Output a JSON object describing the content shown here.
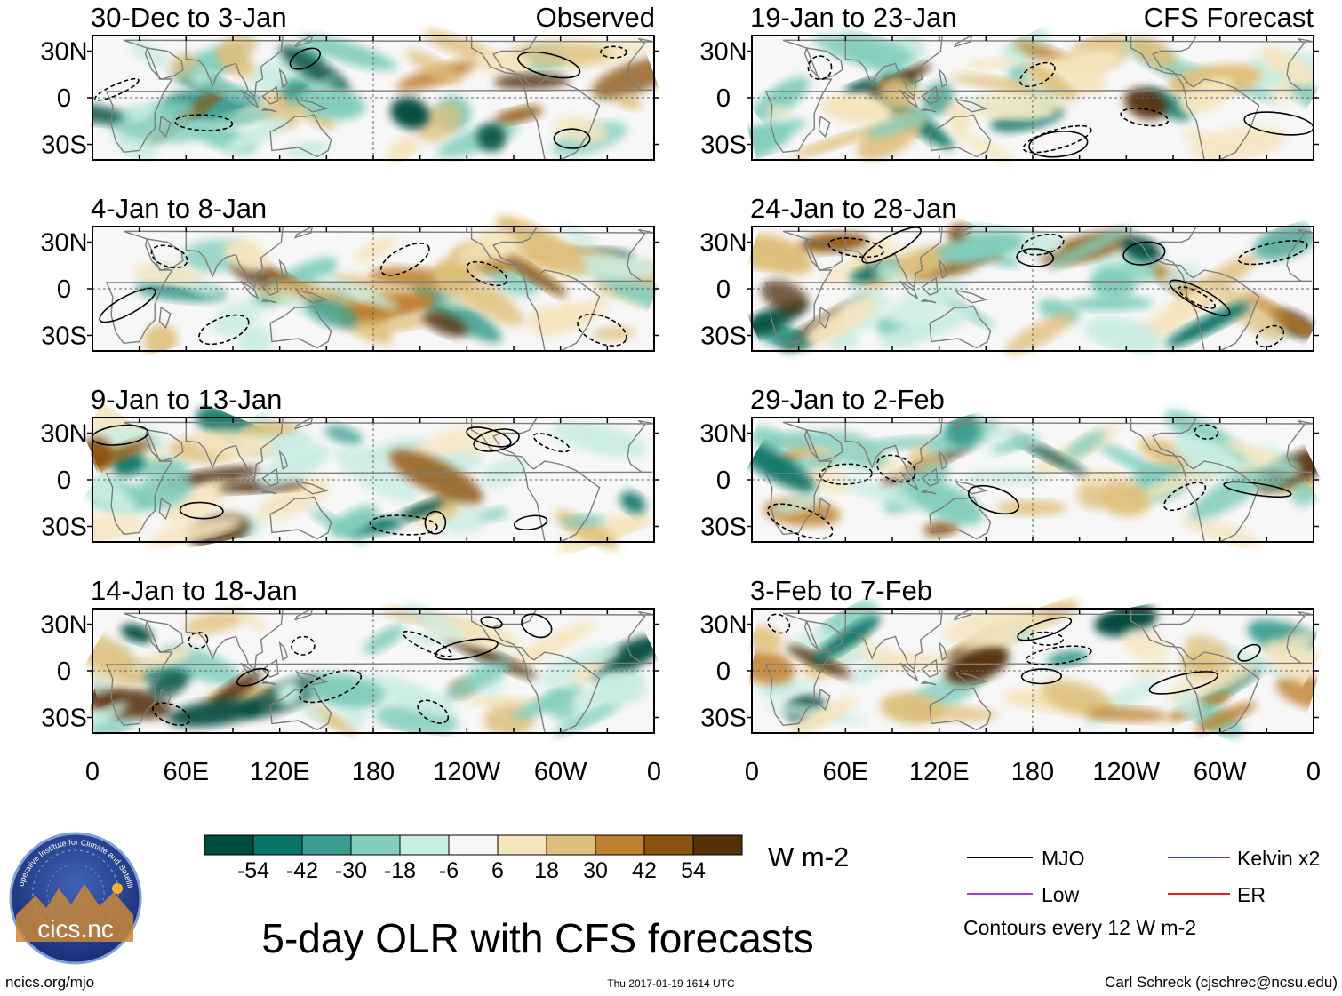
{
  "chart_data": {
    "type": "heatmap",
    "title": "5-day OLR with CFS forecasts",
    "units": "W m-2",
    "column_labels": {
      "left": "Observed",
      "right": "CFS Forecast"
    },
    "panels": [
      {
        "title": "30-Dec to 3-Jan",
        "kind": "observed"
      },
      {
        "title": "4-Jan to 8-Jan",
        "kind": "observed"
      },
      {
        "title": "9-Jan to 13-Jan",
        "kind": "observed"
      },
      {
        "title": "14-Jan to 18-Jan",
        "kind": "observed"
      },
      {
        "title": "19-Jan to 23-Jan",
        "kind": "forecast"
      },
      {
        "title": "24-Jan to 28-Jan",
        "kind": "forecast"
      },
      {
        "title": "29-Jan to 2-Feb",
        "kind": "forecast"
      },
      {
        "title": "3-Feb to 7-Feb",
        "kind": "forecast"
      }
    ],
    "x_ticks": [
      "0",
      "60E",
      "120E",
      "180",
      "120W",
      "60W",
      "0"
    ],
    "x_range_deg": [
      0,
      360
    ],
    "y_ticks": [
      "30N",
      "0",
      "30S"
    ],
    "y_range_deg": [
      -40,
      40
    ],
    "colorbar": {
      "ticks": [
        "-54",
        "-42",
        "-30",
        "-18",
        "-6",
        "6",
        "18",
        "30",
        "42",
        "54"
      ],
      "colors": [
        "#004a3e",
        "#087566",
        "#3a9c8e",
        "#82cdbd",
        "#c9ece2",
        "#f7f7f7",
        "#f5e5be",
        "#dfbf7c",
        "#bf812d",
        "#8c5210",
        "#553008"
      ]
    },
    "legend": [
      {
        "label": "MJO",
        "color": "#000000"
      },
      {
        "label": "Kelvin x2",
        "color": "#2f3ff0"
      },
      {
        "label": "Low",
        "color": "#a040e0"
      },
      {
        "label": "ER",
        "color": "#e02020"
      }
    ],
    "contour_note": "Contours every 12 W m-2"
  },
  "footer": {
    "left": "ncics.org/mjo",
    "center": "Thu 2017-01-19 1614 UTC",
    "right": "Carl Schreck (cjschrec@ncsu.edu)"
  },
  "logo": {
    "text": "cics.nc",
    "ring_text": "Cooperative Institute for Climate and Satellites"
  }
}
